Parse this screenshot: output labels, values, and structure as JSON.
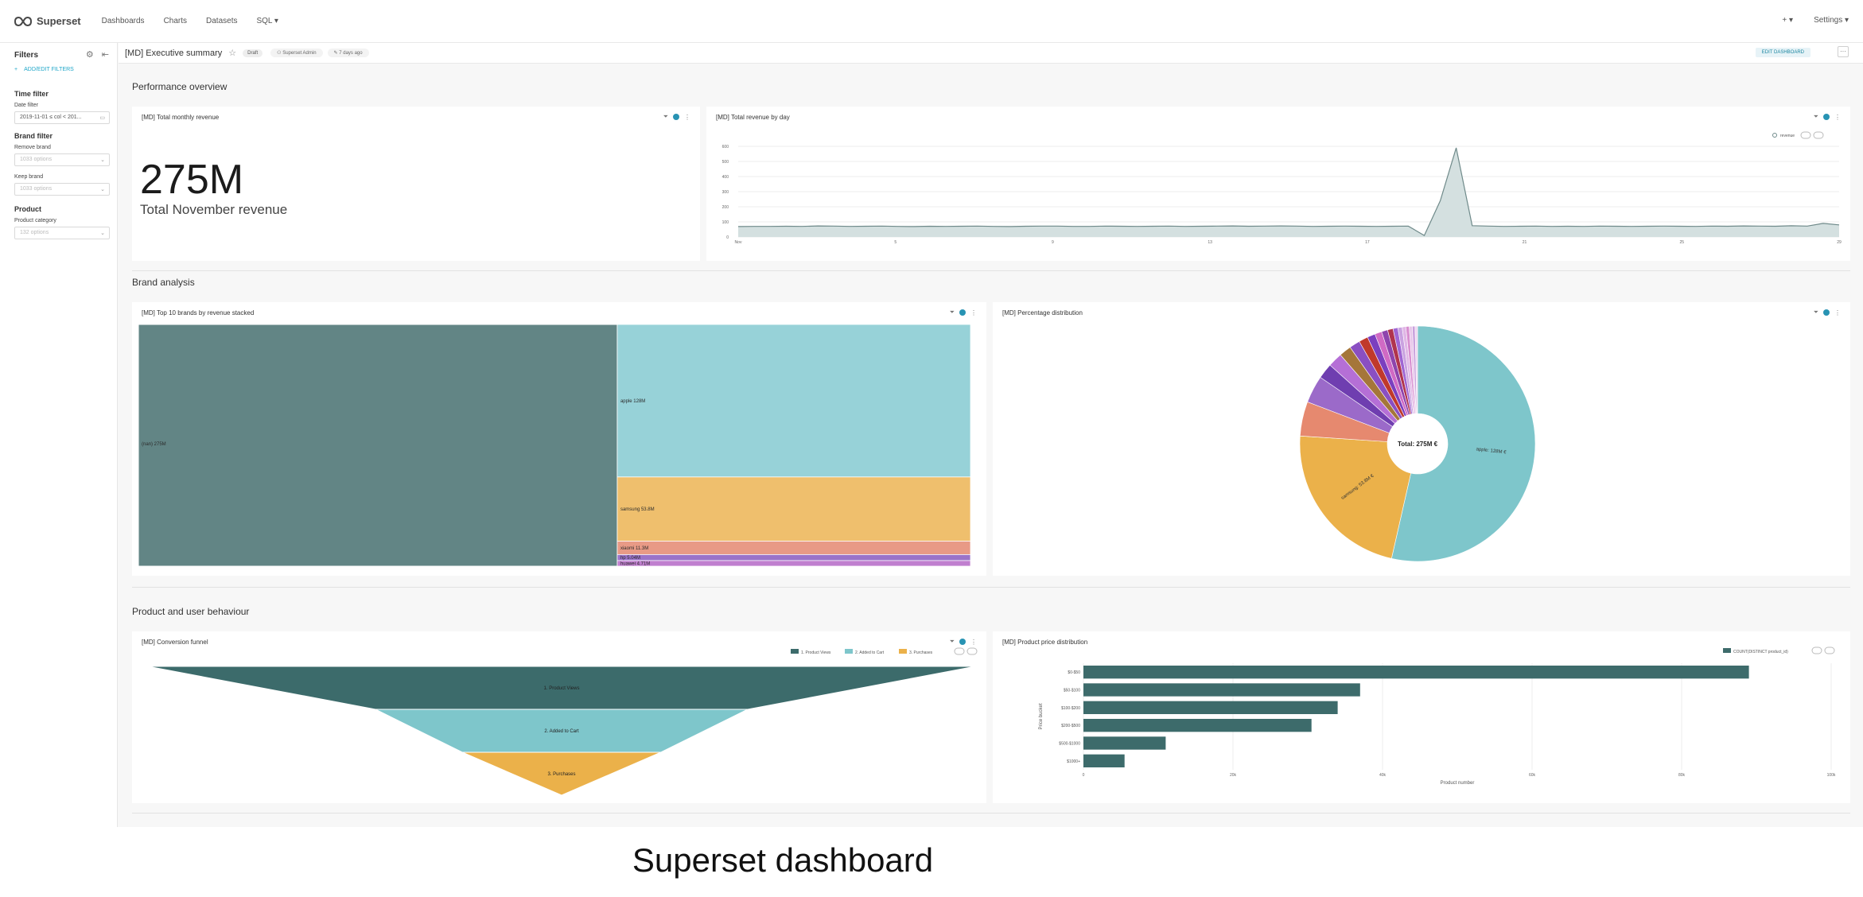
{
  "app": {
    "name": "Superset"
  },
  "nav": {
    "items": [
      "Dashboards",
      "Charts",
      "Datasets",
      "SQL ▾"
    ],
    "plus": "+ ▾",
    "settings": "Settings ▾"
  },
  "filters": {
    "title": "Filters",
    "add_label": "ADD/EDIT FILTERS",
    "groups": [
      {
        "title": "Time filter",
        "fields": [
          {
            "label": "Date filter",
            "value": "2019-11-01 ≤ col < 201...",
            "placeholder": false
          }
        ]
      },
      {
        "title": "Brand filter",
        "fields": [
          {
            "label": "Remove brand",
            "value": "1033 options",
            "placeholder": true
          },
          {
            "label": "Keep brand",
            "value": "1033 options",
            "placeholder": true
          }
        ]
      },
      {
        "title": "Product",
        "fields": [
          {
            "label": "Product category",
            "value": "132 options",
            "placeholder": true
          }
        ]
      }
    ]
  },
  "dashboard": {
    "title": "[MD] Executive summary",
    "status": "Draft",
    "owner": "Superset Admin",
    "modified": "7 days ago",
    "edit_label": "EDIT DASHBOARD",
    "more": "···"
  },
  "sections": [
    "Performance overview",
    "Brand analysis",
    "Product and user behaviour"
  ],
  "charts": {
    "big_number": {
      "title": "[MD] Total monthly revenue",
      "value": "275M",
      "subtitle": "Total November revenue"
    },
    "revenue_by_day": {
      "title": "[MD] Total revenue by day",
      "legend": "revenue"
    },
    "treemap": {
      "title": "[MD] Top 10 brands by revenue stacked"
    },
    "pie": {
      "title": "[MD] Percentage distribution",
      "total_label": "Total: 275M €"
    },
    "funnel": {
      "title": "[MD] Conversion funnel",
      "legend": [
        "1. Product Views",
        "2. Added to Cart",
        "3. Purchases"
      ]
    },
    "price": {
      "title": "[MD] Product price distribution",
      "legend": "COUNT(DISTINCT product_id)",
      "ylabel": "Price bucket",
      "xlabel": "Product number"
    }
  },
  "chart_data": [
    {
      "type": "line",
      "title": "[MD] Total revenue by day",
      "series": [
        {
          "name": "revenue",
          "values": [
            69,
            70,
            70,
            71,
            70,
            73,
            72,
            70,
            71,
            72,
            70,
            69,
            71,
            70,
            71,
            72,
            70,
            69,
            71,
            72,
            72,
            70,
            70,
            72,
            71,
            70,
            71,
            72,
            70,
            71,
            72,
            73,
            71,
            72,
            73,
            72,
            70,
            71,
            72,
            71,
            70,
            71,
            72,
            10,
            240,
            590,
            75,
            72,
            70,
            71,
            72,
            70,
            71,
            70,
            72,
            71,
            70,
            71,
            72,
            71,
            70,
            72,
            71,
            73,
            72,
            71,
            74,
            72,
            90,
            80
          ]
        }
      ],
      "ylim": [
        0,
        600
      ],
      "yticks": [
        "0",
        "100",
        "200",
        "300",
        "400",
        "500",
        "600"
      ],
      "xticks": [
        "Nov",
        "5",
        "9",
        "13",
        "17",
        "21",
        "25",
        "29"
      ]
    },
    {
      "type": "treemap",
      "title": "[MD] Top 10 brands by revenue stacked",
      "items": [
        {
          "label": "(nan) 275M",
          "value": 275,
          "color": "#628585"
        },
        {
          "label": "apple 128M",
          "value": 128,
          "color": "#97d2d8"
        },
        {
          "label": "samsung 53.8M",
          "value": 53.8,
          "color": "#efbf6d"
        },
        {
          "label": "xiaomi 11.3M",
          "value": 11.3,
          "color": "#e89a86"
        },
        {
          "label": "hp 5.04M",
          "value": 5.04,
          "color": "#9b73c9"
        },
        {
          "label": "huawei 4.71M",
          "value": 4.71,
          "color": "#c07fcf"
        }
      ]
    },
    {
      "type": "pie",
      "title": "[MD] Percentage distribution",
      "total": "Total: 275M €",
      "slices": [
        {
          "label": "apple: 128M €",
          "value": 128,
          "color": "#7ec6cb"
        },
        {
          "label": "samsung: 53.8M €",
          "value": 53.8,
          "color": "#ebb14a"
        },
        {
          "label": "",
          "value": 11.3,
          "color": "#e6896f"
        },
        {
          "label": "",
          "value": 9,
          "color": "#9b6ac9"
        },
        {
          "label": "",
          "value": 5.04,
          "color": "#6f3eb0"
        },
        {
          "label": "",
          "value": 4.71,
          "color": "#b56fd6"
        },
        {
          "label": "",
          "value": 4,
          "color": "#a5763a"
        },
        {
          "label": "",
          "value": 3.5,
          "color": "#8a4fc2"
        },
        {
          "label": "",
          "value": 3,
          "color": "#c0392b"
        },
        {
          "label": "",
          "value": 2.6,
          "color": "#7b3fbf"
        },
        {
          "label": "",
          "value": 2.3,
          "color": "#d06ac4"
        },
        {
          "label": "",
          "value": 2,
          "color": "#8e44ad"
        },
        {
          "label": "",
          "value": 1.8,
          "color": "#b0344e"
        },
        {
          "label": "",
          "value": 1.6,
          "color": "#a066d3"
        },
        {
          "label": "",
          "value": 1.4,
          "color": "#caa2e0"
        },
        {
          "label": "",
          "value": 1.2,
          "color": "#e0b6e6"
        },
        {
          "label": "",
          "value": 1.1,
          "color": "#d88fd0"
        },
        {
          "label": "",
          "value": 1,
          "color": "#e8c7ea"
        },
        {
          "label": "",
          "value": 0.9,
          "color": "#c9a0dc"
        },
        {
          "label": "",
          "value": 0.8,
          "color": "#efd5f0"
        }
      ]
    },
    {
      "type": "funnel",
      "title": "[MD] Conversion funnel",
      "stages": [
        {
          "label": "1. Product Views",
          "value": 100,
          "color": "#3c6b6b"
        },
        {
          "label": "2. Added to Cart",
          "value": 45,
          "color": "#7ec6cb"
        },
        {
          "label": "3. Purchases",
          "value": 24,
          "color": "#ebb14a"
        }
      ]
    },
    {
      "type": "bar",
      "title": "[MD] Product price distribution",
      "orientation": "horizontal",
      "categories": [
        "$0-$50",
        "$50-$100",
        "$100-$200",
        "$200-$500",
        "$500-$1000",
        "$1000+"
      ],
      "values": [
        89,
        37,
        34,
        30.5,
        11,
        5.5
      ],
      "xticks": [
        "0",
        "20k",
        "40k",
        "60k",
        "80k",
        "100k"
      ],
      "xlim": [
        0,
        100
      ],
      "color": "#3d6b6b"
    }
  ],
  "caption": "Superset dashboard"
}
